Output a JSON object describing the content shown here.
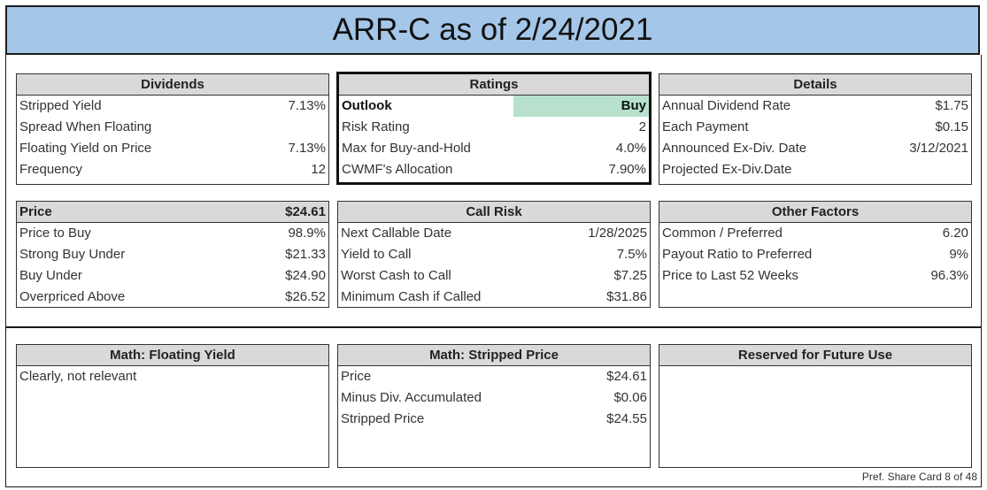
{
  "title": "ARR-C as of 2/24/2021",
  "dividends": {
    "header": "Dividends",
    "rows": [
      {
        "label": "Stripped Yield",
        "value": "7.13%"
      },
      {
        "label": "Spread When Floating",
        "value": ""
      },
      {
        "label": "Floating Yield on Price",
        "value": "7.13%"
      },
      {
        "label": "Frequency",
        "value": "12"
      }
    ]
  },
  "ratings": {
    "header": "Ratings",
    "outlook_label": "Outlook",
    "outlook_value": "Buy",
    "outlook_color": "#b7e1cd",
    "rows": [
      {
        "label": "Risk Rating",
        "value": "2"
      },
      {
        "label": "Max for Buy-and-Hold",
        "value": "4.0%"
      },
      {
        "label": "CWMF's Allocation",
        "value": "7.90%"
      }
    ]
  },
  "details": {
    "header": "Details",
    "rows": [
      {
        "label": "Annual Dividend Rate",
        "value": "$1.75"
      },
      {
        "label": "Each Payment",
        "value": "$0.15"
      },
      {
        "label": "Announced Ex-Div. Date",
        "value": "3/12/2021"
      },
      {
        "label": "Projected Ex-Div.Date",
        "value": ""
      }
    ]
  },
  "price": {
    "header": "Price",
    "header_value": "$24.61",
    "rows": [
      {
        "label": "Price to Buy",
        "value": "98.9%"
      },
      {
        "label": "Strong Buy Under",
        "value": "$21.33"
      },
      {
        "label": "Buy Under",
        "value": "$24.90"
      },
      {
        "label": "Overpriced Above",
        "value": "$26.52"
      }
    ]
  },
  "call_risk": {
    "header": "Call Risk",
    "rows": [
      {
        "label": "Next Callable Date",
        "value": "1/28/2025"
      },
      {
        "label": "Yield to Call",
        "value": "7.5%"
      },
      {
        "label": "Worst Cash to Call",
        "value": "$7.25"
      },
      {
        "label": "Minimum Cash if Called",
        "value": "$31.86"
      }
    ]
  },
  "other_factors": {
    "header": "Other Factors",
    "rows": [
      {
        "label": "Common / Preferred",
        "value": "6.20"
      },
      {
        "label": "Payout Ratio to Preferred",
        "value": "9%"
      },
      {
        "label": "Price to Last 52 Weeks",
        "value": "96.3%"
      }
    ]
  },
  "math_floating": {
    "header": "Math: Floating Yield",
    "rows": [
      {
        "label": "Clearly, not relevant",
        "value": ""
      }
    ]
  },
  "math_stripped": {
    "header": "Math: Stripped Price",
    "rows": [
      {
        "label": "Price",
        "value": "$24.61"
      },
      {
        "label": "Minus Div. Accumulated",
        "value": "$0.06"
      },
      {
        "label": "Stripped Price",
        "value": "$24.55"
      }
    ]
  },
  "reserved": {
    "header": "Reserved for Future Use"
  },
  "footer": "Pref. Share Card 8 of 48"
}
